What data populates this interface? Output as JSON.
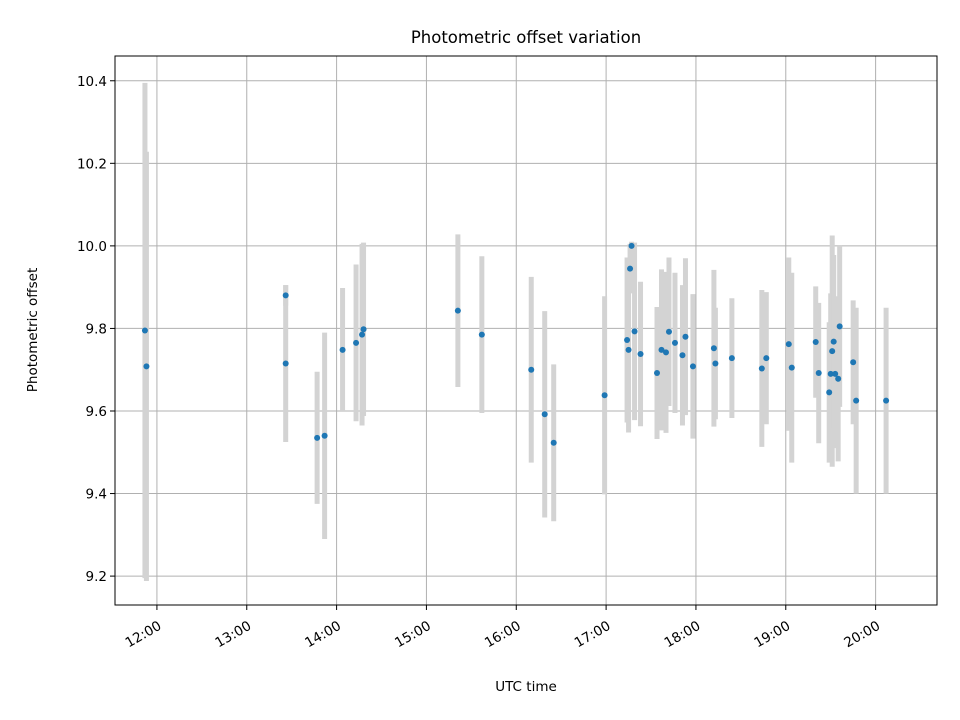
{
  "chart_data": {
    "type": "scatter",
    "title": "Photometric offset variation",
    "xlabel": "UTC time",
    "ylabel": "Photometric offset",
    "grid": true,
    "xlim": [
      "11:32",
      "20:41"
    ],
    "ylim": [
      9.13,
      10.46
    ],
    "x_ticks": [
      "12:00",
      "13:00",
      "14:00",
      "15:00",
      "16:00",
      "17:00",
      "18:00",
      "19:00",
      "20:00"
    ],
    "y_ticks": [
      "9.2",
      "9.4",
      "9.6",
      "9.8",
      "10.0",
      "10.2",
      "10.4"
    ],
    "colors": {
      "point": "#1f77b4",
      "errorbar": "#d3d3d3",
      "grid": "#b0b0b0"
    },
    "series": [
      {
        "x": [
          "11:52",
          "11:53",
          "13:26",
          "13:26",
          "13:47",
          "13:52",
          "14:04",
          "14:13",
          "14:17",
          "14:18",
          "15:21",
          "15:37",
          "16:10",
          "16:19",
          "16:25",
          "16:59",
          "17:14",
          "17:15",
          "17:16",
          "17:17",
          "17:19",
          "17:23",
          "17:34",
          "17:37",
          "17:40",
          "17:42",
          "17:46",
          "17:51",
          "17:53",
          "17:58",
          "18:12",
          "18:13",
          "18:24",
          "18:44",
          "18:47",
          "19:02",
          "19:04",
          "19:20",
          "19:22",
          "19:29",
          "19:30",
          "19:31",
          "19:32",
          "19:33",
          "19:35",
          "19:36",
          "19:45",
          "19:47",
          "20:07"
        ],
        "y": [
          9.795,
          9.708,
          9.88,
          9.715,
          9.535,
          9.54,
          9.748,
          9.765,
          9.785,
          9.798,
          9.843,
          9.785,
          9.7,
          9.592,
          9.523,
          9.638,
          9.772,
          9.748,
          9.945,
          10.0,
          9.793,
          9.738,
          9.692,
          9.748,
          9.742,
          9.792,
          9.765,
          9.735,
          9.78,
          9.708,
          9.752,
          9.715,
          9.728,
          9.703,
          9.728,
          9.762,
          9.705,
          9.767,
          9.692,
          9.645,
          9.69,
          9.745,
          9.768,
          9.69,
          9.678,
          9.805,
          9.718,
          9.625,
          9.625
        ],
        "err": [
          0.6,
          0.52,
          0.025,
          0.19,
          0.16,
          0.25,
          0.15,
          0.19,
          0.22,
          0.21,
          0.185,
          0.19,
          0.225,
          0.25,
          0.19,
          0.24,
          0.2,
          0.2,
          0.06,
          0.01,
          0.215,
          0.175,
          0.16,
          0.195,
          0.195,
          0.18,
          0.17,
          0.17,
          0.19,
          0.175,
          0.19,
          0.135,
          0.145,
          0.19,
          0.16,
          0.21,
          0.23,
          0.135,
          0.17,
          0.17,
          0.195,
          0.28,
          0.21,
          0.18,
          0.2,
          0.195,
          0.15,
          0.225,
          0.225
        ]
      }
    ]
  }
}
